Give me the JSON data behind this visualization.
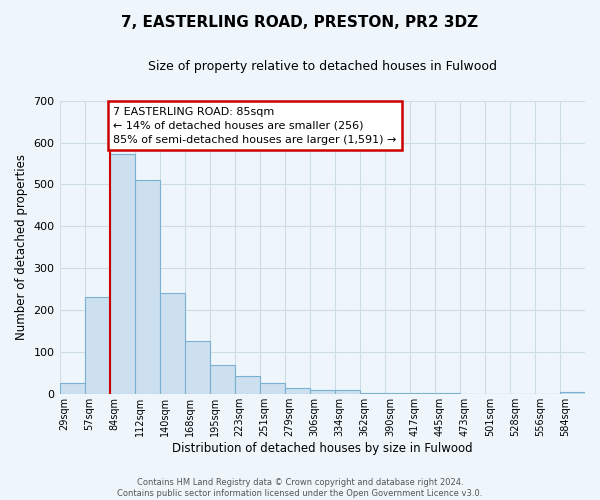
{
  "title": "7, EASTERLING ROAD, PRESTON, PR2 3DZ",
  "subtitle": "Size of property relative to detached houses in Fulwood",
  "xlabel": "Distribution of detached houses by size in Fulwood",
  "ylabel": "Number of detached properties",
  "bin_labels": [
    "29sqm",
    "57sqm",
    "84sqm",
    "112sqm",
    "140sqm",
    "168sqm",
    "195sqm",
    "223sqm",
    "251sqm",
    "279sqm",
    "306sqm",
    "334sqm",
    "362sqm",
    "390sqm",
    "417sqm",
    "445sqm",
    "473sqm",
    "501sqm",
    "528sqm",
    "556sqm",
    "584sqm"
  ],
  "bar_values": [
    28,
    232,
    573,
    510,
    242,
    126,
    70,
    43,
    27,
    14,
    10,
    10,
    3,
    3,
    3,
    3,
    0,
    0,
    0,
    0,
    5
  ],
  "bar_color": "#cce0f0",
  "bar_edge_color": "#7ab0d0",
  "subject_line_color": "#cc0000",
  "subject_line_index": 2,
  "annotation_text": "7 EASTERLING ROAD: 85sqm\n← 14% of detached houses are smaller (256)\n85% of semi-detached houses are larger (1,591) →",
  "annotation_box_color": "#ffffff",
  "annotation_box_edge_color": "#cc0000",
  "ylim": [
    0,
    700
  ],
  "yticks": [
    0,
    100,
    200,
    300,
    400,
    500,
    600,
    700
  ],
  "footer_text": "Contains HM Land Registry data © Crown copyright and database right 2024.\nContains public sector information licensed under the Open Government Licence v3.0.",
  "grid_color": "#ccdde8",
  "background_color": "#eef6fb"
}
